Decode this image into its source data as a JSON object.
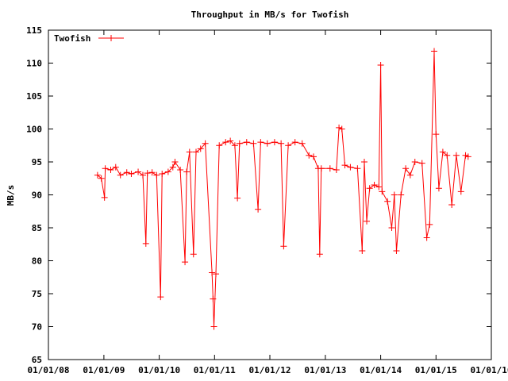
{
  "chart_data": {
    "type": "line",
    "title": "Throughput in MB/s for Twofish",
    "xlabel": "",
    "ylabel": "MB/s",
    "ylim": [
      65,
      115
    ],
    "xlim": [
      "2008-01-01",
      "2016-01-01"
    ],
    "y_ticks": [
      65,
      70,
      75,
      80,
      85,
      90,
      95,
      100,
      105,
      110,
      115
    ],
    "x_ticks": [
      "01/01/08",
      "01/01/09",
      "01/01/10",
      "01/01/11",
      "01/01/12",
      "01/01/13",
      "01/01/14",
      "01/01/15",
      "01/01/16"
    ],
    "x_tick_dates": [
      "2008-01-01",
      "2009-01-01",
      "2010-01-01",
      "2011-01-01",
      "2012-01-01",
      "2013-01-01",
      "2014-01-01",
      "2015-01-01",
      "2016-01-01"
    ],
    "grid": false,
    "legend": "top-left",
    "marker": "plus",
    "color": "#ff0000",
    "series": [
      {
        "name": "Twofish",
        "points": [
          [
            "2008-11-20",
            93.0
          ],
          [
            "2008-12-15",
            92.5
          ],
          [
            "2009-01-05",
            89.6
          ],
          [
            "2009-01-10",
            94.0
          ],
          [
            "2009-02-15",
            93.8
          ],
          [
            "2009-03-20",
            94.2
          ],
          [
            "2009-04-20",
            93.0
          ],
          [
            "2009-06-01",
            93.4
          ],
          [
            "2009-07-01",
            93.2
          ],
          [
            "2009-08-15",
            93.5
          ],
          [
            "2009-09-15",
            93.0
          ],
          [
            "2009-10-05",
            82.6
          ],
          [
            "2009-10-15",
            93.3
          ],
          [
            "2009-11-15",
            93.4
          ],
          [
            "2009-12-15",
            93.0
          ],
          [
            "2010-01-10",
            74.5
          ],
          [
            "2010-01-20",
            93.2
          ],
          [
            "2010-03-01",
            93.5
          ],
          [
            "2010-04-01",
            94.2
          ],
          [
            "2010-04-15",
            95.0
          ],
          [
            "2010-05-20",
            93.8
          ],
          [
            "2010-06-20",
            79.8
          ],
          [
            "2010-07-01",
            93.5
          ],
          [
            "2010-07-20",
            96.5
          ],
          [
            "2010-08-15",
            81.0
          ],
          [
            "2010-09-01",
            96.5
          ],
          [
            "2010-10-01",
            97.0
          ],
          [
            "2010-11-01",
            97.8
          ],
          [
            "2010-12-15",
            78.2
          ],
          [
            "2010-12-22",
            74.2
          ],
          [
            "2010-12-28",
            70.0
          ],
          [
            "2011-01-10",
            78.0
          ],
          [
            "2011-02-01",
            97.5
          ],
          [
            "2011-03-15",
            98.0
          ],
          [
            "2011-04-15",
            98.2
          ],
          [
            "2011-05-15",
            97.5
          ],
          [
            "2011-06-01",
            89.5
          ],
          [
            "2011-06-15",
            97.8
          ],
          [
            "2011-08-01",
            98.0
          ],
          [
            "2011-09-15",
            97.8
          ],
          [
            "2011-10-15",
            87.8
          ],
          [
            "2011-11-01",
            98.0
          ],
          [
            "2011-12-15",
            97.8
          ],
          [
            "2012-02-01",
            98.0
          ],
          [
            "2012-03-15",
            97.8
          ],
          [
            "2012-04-01",
            82.2
          ],
          [
            "2012-05-01",
            97.5
          ],
          [
            "2012-06-15",
            98.0
          ],
          [
            "2012-08-01",
            97.8
          ],
          [
            "2012-09-15",
            96.0
          ],
          [
            "2012-10-15",
            95.8
          ],
          [
            "2012-11-15",
            94.0
          ],
          [
            "2012-11-25",
            81.0
          ],
          [
            "2012-12-05",
            94.0
          ],
          [
            "2013-02-01",
            94.0
          ],
          [
            "2013-03-15",
            93.8
          ],
          [
            "2013-04-01",
            100.2
          ],
          [
            "2013-04-20",
            100.0
          ],
          [
            "2013-05-10",
            94.5
          ],
          [
            "2013-06-15",
            94.2
          ],
          [
            "2013-08-01",
            94.0
          ],
          [
            "2013-09-01",
            81.5
          ],
          [
            "2013-09-15",
            95.0
          ],
          [
            "2013-10-01",
            86.0
          ],
          [
            "2013-10-20",
            91.0
          ],
          [
            "2013-11-20",
            91.5
          ],
          [
            "2013-12-20",
            91.2
          ],
          [
            "2014-01-01",
            109.7
          ],
          [
            "2014-01-10",
            90.5
          ],
          [
            "2014-02-15",
            89.0
          ],
          [
            "2014-03-15",
            85.0
          ],
          [
            "2014-04-01",
            90.0
          ],
          [
            "2014-04-15",
            81.5
          ],
          [
            "2014-05-15",
            90.0
          ],
          [
            "2014-06-15",
            94.0
          ],
          [
            "2014-07-15",
            93.0
          ],
          [
            "2014-08-15",
            95.0
          ],
          [
            "2014-10-01",
            94.8
          ],
          [
            "2014-11-01",
            83.5
          ],
          [
            "2014-11-20",
            85.5
          ],
          [
            "2014-12-20",
            111.8
          ],
          [
            "2015-01-01",
            99.2
          ],
          [
            "2015-01-20",
            91.0
          ],
          [
            "2015-02-15",
            96.5
          ],
          [
            "2015-03-15",
            96.0
          ],
          [
            "2015-04-15",
            88.5
          ],
          [
            "2015-05-15",
            96.0
          ],
          [
            "2015-06-15",
            90.5
          ],
          [
            "2015-07-15",
            96.0
          ],
          [
            "2015-08-01",
            95.8
          ]
        ]
      }
    ]
  }
}
